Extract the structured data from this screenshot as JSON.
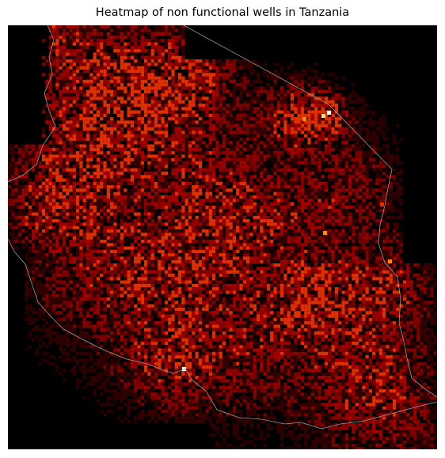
{
  "title": "Heatmap of non functional wells in Tanzania",
  "map": {
    "background_color": "#000000",
    "border_color": "#9a9a9a",
    "colormap": [
      "#000000",
      "#5a0000",
      "#a80000",
      "#e03000",
      "#ff8c00",
      "#ffe080",
      "#ffffff"
    ]
  }
}
